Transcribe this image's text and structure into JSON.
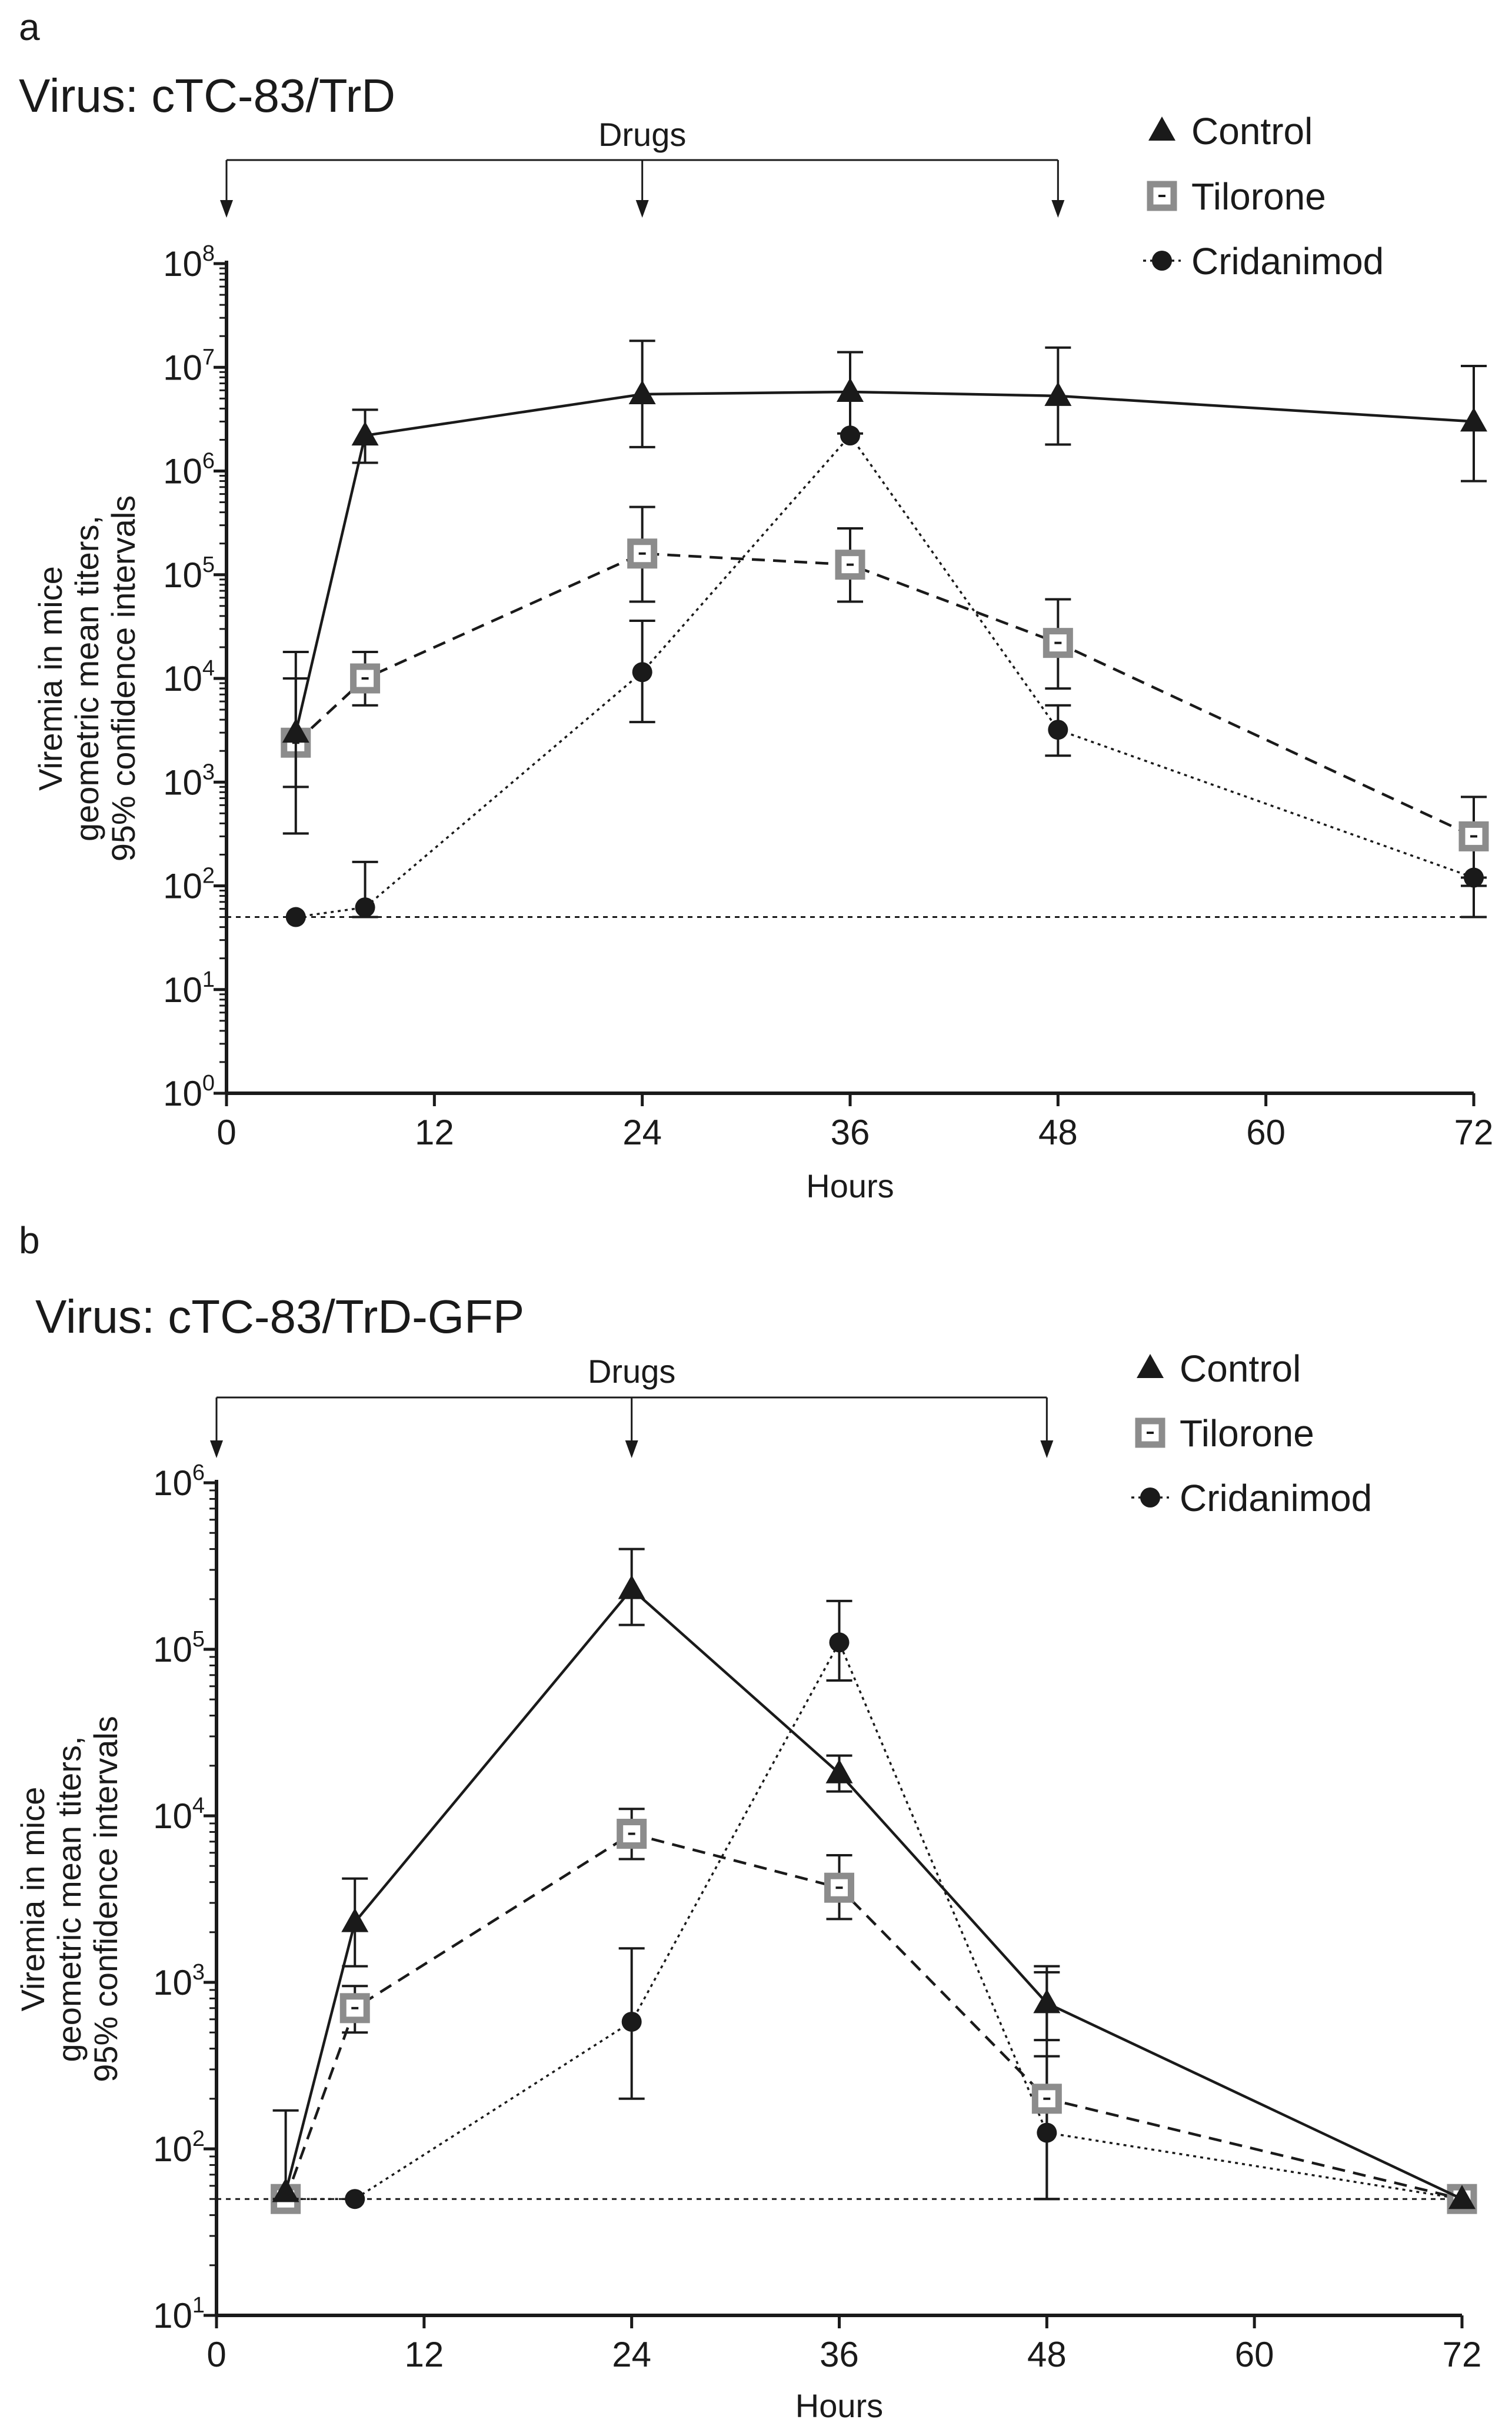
{
  "chart_data": [
    {
      "panel": "a",
      "title": "Virus: cTC-83/TrD",
      "type": "line",
      "xlabel": "Hours",
      "ylabel_lines": [
        "Viremia in mice",
        "geometric mean titers,",
        "95% confidence intervals"
      ],
      "xlim": [
        0,
        72
      ],
      "x_ticks": [
        0,
        12,
        24,
        36,
        48,
        60,
        72
      ],
      "ylim": [
        1,
        100000000
      ],
      "yscale": "log",
      "y_tick_exponents": [
        0,
        1,
        2,
        3,
        4,
        5,
        6,
        7,
        8
      ],
      "y_tick_base": "10",
      "annotation": {
        "label": "Drugs",
        "arrow_hours": [
          0,
          24,
          48
        ]
      },
      "detection_limit": 50,
      "legend_position": "top-right",
      "series": [
        {
          "name": "Control",
          "marker": "triangle",
          "line": "solid",
          "color": "#1a1a1a",
          "x": [
            4,
            8,
            24,
            36,
            48,
            72
          ],
          "y": [
            3000,
            2200000,
            5500000,
            5800000,
            5300000,
            3000000
          ],
          "ci_low": [
            900,
            1200000,
            1700000,
            2300000,
            1800000,
            800000
          ],
          "ci_high": [
            10000,
            3900000,
            18000000,
            14000000,
            15500000,
            10300000
          ]
        },
        {
          "name": "Tilorone",
          "marker": "open-square",
          "line": "dashed",
          "color": "#8c8c8c",
          "x": [
            4,
            8,
            24,
            36,
            48,
            72
          ],
          "y": [
            2400,
            10000,
            160000,
            125000,
            22000,
            300
          ],
          "ci_low": [
            320,
            5500,
            55000,
            55000,
            8000,
            100
          ],
          "ci_high": [
            18000,
            18000,
            450000,
            280000,
            58000,
            720
          ]
        },
        {
          "name": "Cridanimod",
          "marker": "circle",
          "line": "dotted",
          "color": "#1a1a1a",
          "x": [
            4,
            8,
            24,
            36,
            48,
            72
          ],
          "y": [
            50,
            62,
            11500,
            2200000,
            3200,
            120
          ],
          "ci_low": [
            50,
            50,
            3800,
            2200000,
            1800,
            50
          ],
          "ci_high": [
            50,
            170,
            36000,
            2200000,
            5500,
            120
          ]
        }
      ]
    },
    {
      "panel": "b",
      "title": "Virus: cTC-83/TrD-GFP",
      "type": "line",
      "xlabel": "Hours",
      "ylabel_lines": [
        "Viremia in mice",
        "geometric mean titers,",
        "95% confidence intervals"
      ],
      "xlim": [
        0,
        72
      ],
      "x_ticks": [
        0,
        12,
        24,
        36,
        48,
        60,
        72
      ],
      "ylim": [
        10,
        1000000
      ],
      "yscale": "log",
      "y_tick_exponents": [
        1,
        2,
        3,
        4,
        5,
        6
      ],
      "y_tick_base": "10",
      "annotation": {
        "label": "Drugs",
        "arrow_hours": [
          0,
          24,
          48
        ]
      },
      "detection_limit": 50,
      "legend_position": "top-right",
      "series": [
        {
          "name": "Control",
          "marker": "triangle",
          "line": "solid",
          "color": "#1a1a1a",
          "x": [
            4,
            8,
            24,
            36,
            48,
            72
          ],
          "y": [
            55,
            2300,
            230000,
            18000,
            750,
            50
          ],
          "ci_low": [
            50,
            1250,
            140000,
            14000,
            450,
            50
          ],
          "ci_high": [
            170,
            4200,
            400000,
            23000,
            1250,
            50
          ]
        },
        {
          "name": "Tilorone",
          "marker": "open-square",
          "line": "dashed",
          "color": "#8c8c8c",
          "x": [
            4,
            8,
            24,
            36,
            48,
            72
          ],
          "y": [
            50,
            700,
            7800,
            3700,
            200,
            50
          ],
          "ci_low": [
            50,
            500,
            5500,
            2400,
            50,
            50
          ],
          "ci_high": [
            50,
            950,
            11000,
            5800,
            1150,
            50
          ]
        },
        {
          "name": "Cridanimod",
          "marker": "circle",
          "line": "dotted",
          "color": "#1a1a1a",
          "x": [
            4,
            8,
            24,
            36,
            48,
            72
          ],
          "y": [
            50,
            50,
            580,
            110000,
            125,
            50
          ],
          "ci_low": [
            50,
            50,
            200,
            65000,
            50,
            50
          ],
          "ci_high": [
            50,
            50,
            1600,
            195000,
            360,
            50
          ]
        }
      ]
    }
  ]
}
